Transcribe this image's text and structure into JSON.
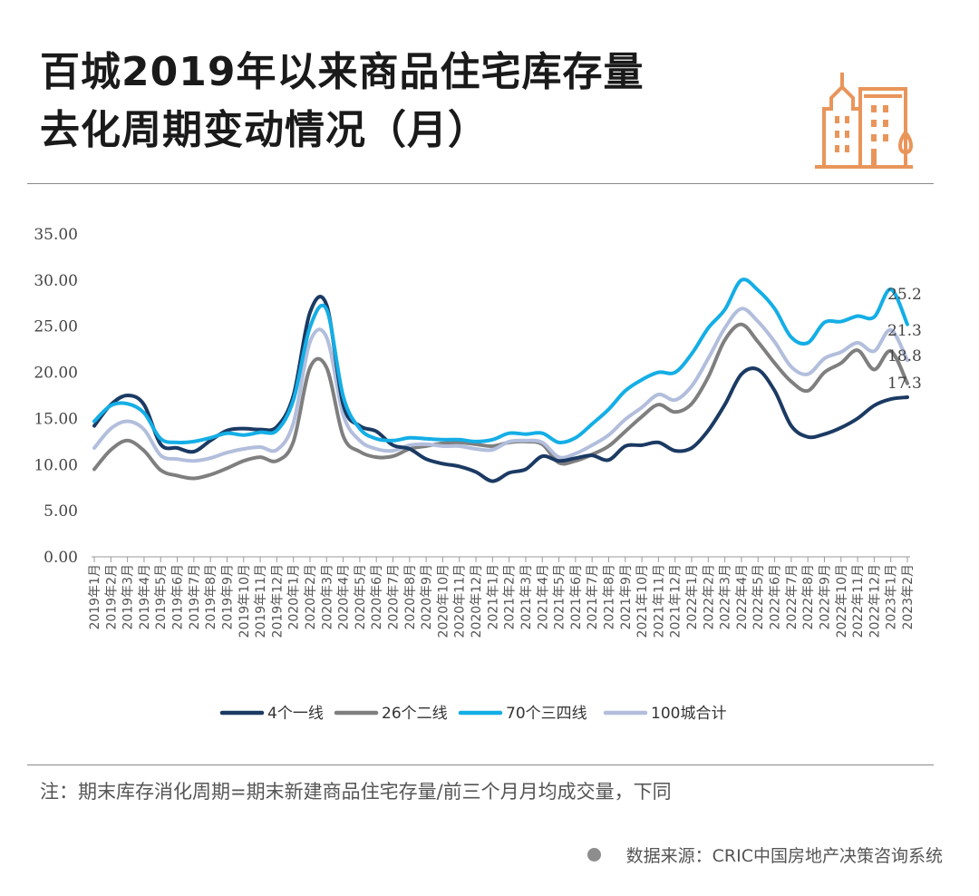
{
  "header": {
    "title_line1": "百城2019年以来商品住宅库存量",
    "title_line2": "去化周期变动情况（月）",
    "logo_icon": "building-icon",
    "accent_color": "#e9955a"
  },
  "footer": {
    "note": "注：期末库存消化周期=期末新建商品住宅存量/前三个月月均成交量，下同",
    "source": "数据来源：CRIC中国房地产决策咨询系统"
  },
  "chart_data": {
    "type": "line",
    "ylim": [
      0,
      35
    ],
    "yticks": [
      "0.00",
      "5.00",
      "10.00",
      "15.00",
      "20.00",
      "25.00",
      "30.00",
      "35.00"
    ],
    "categories": [
      "2019年1月",
      "2019年2月",
      "2019年3月",
      "2019年4月",
      "2019年5月",
      "2019年6月",
      "2019年7月",
      "2019年8月",
      "2019年9月",
      "2019年10月",
      "2019年11月",
      "2019年12月",
      "2020年1月",
      "2020年2月",
      "2020年3月",
      "2020年4月",
      "2020年5月",
      "2020年6月",
      "2020年7月",
      "2020年8月",
      "2020年9月",
      "2020年10月",
      "2020年11月",
      "2020年12月",
      "2021年1月",
      "2021年2月",
      "2021年3月",
      "2021年4月",
      "2021年5月",
      "2021年6月",
      "2021年7月",
      "2021年8月",
      "2021年9月",
      "2021年10月",
      "2021年11月",
      "2021年12月",
      "2022年1月",
      "2022年2月",
      "2022年3月",
      "2022年4月",
      "2022年5月",
      "2022年6月",
      "2022年7月",
      "2022年8月",
      "2022年9月",
      "2022年10月",
      "2022年11月",
      "2022年12月",
      "2023年1月",
      "2023年2月"
    ],
    "series": [
      {
        "name": "4个一线",
        "color": "#1b3a63",
        "values": [
          14.2,
          16.5,
          17.5,
          16.5,
          12.2,
          11.8,
          11.4,
          12.6,
          13.7,
          13.9,
          13.8,
          14.1,
          17.5,
          26.5,
          27.3,
          16.5,
          14.2,
          13.6,
          12.1,
          11.7,
          10.6,
          10.1,
          9.8,
          9.2,
          8.2,
          9.1,
          9.5,
          10.9,
          10.4,
          10.7,
          11.0,
          10.5,
          12.0,
          12.1,
          12.4,
          11.5,
          11.8,
          13.7,
          16.5,
          19.8,
          20.3,
          18.0,
          14.2,
          13.0,
          13.3,
          14.0,
          15.0,
          16.4,
          17.1,
          17.3
        ]
      },
      {
        "name": "26个二线",
        "color": "#7f7f7f",
        "values": [
          9.5,
          11.6,
          12.6,
          11.5,
          9.4,
          8.8,
          8.5,
          8.9,
          9.6,
          10.4,
          10.8,
          10.4,
          12.5,
          20.5,
          20.5,
          13.1,
          11.4,
          10.8,
          10.9,
          11.7,
          12.0,
          12.3,
          12.4,
          12.2,
          12.0,
          12.4,
          12.5,
          12.2,
          10.2,
          10.4,
          11.1,
          12.0,
          13.6,
          15.2,
          16.5,
          15.7,
          16.6,
          19.5,
          23.5,
          25.2,
          23.3,
          21.0,
          19.0,
          18.0,
          20.0,
          21.0,
          22.4,
          20.3,
          22.3,
          18.8
        ]
      },
      {
        "name": "70个三四线",
        "color": "#14aee6",
        "values": [
          14.7,
          16.4,
          16.6,
          15.6,
          12.8,
          12.4,
          12.5,
          12.9,
          13.4,
          13.2,
          13.5,
          13.7,
          17.0,
          24.9,
          26.8,
          17.4,
          13.9,
          12.8,
          12.6,
          12.9,
          12.8,
          12.7,
          12.7,
          12.5,
          12.7,
          13.4,
          13.3,
          13.4,
          12.4,
          12.9,
          14.4,
          16.0,
          18.0,
          19.2,
          20.0,
          20.0,
          22.0,
          24.8,
          26.8,
          30.0,
          28.9,
          26.9,
          23.8,
          23.2,
          25.4,
          25.5,
          26.1,
          26.0,
          29.0,
          25.2
        ]
      },
      {
        "name": "100城合计",
        "color": "#b2bedc",
        "values": [
          11.8,
          13.9,
          14.7,
          13.8,
          11.0,
          10.6,
          10.4,
          10.7,
          11.3,
          11.7,
          11.9,
          11.6,
          14.5,
          23.3,
          23.8,
          15.4,
          12.6,
          11.7,
          11.5,
          12.1,
          12.2,
          12.0,
          12.0,
          11.7,
          11.6,
          12.5,
          12.6,
          12.4,
          10.8,
          11.2,
          12.1,
          13.2,
          14.9,
          16.2,
          17.6,
          17.0,
          18.5,
          21.5,
          24.8,
          26.9,
          25.5,
          23.3,
          20.6,
          19.8,
          21.5,
          22.2,
          23.2,
          22.3,
          24.6,
          21.3
        ]
      }
    ],
    "end_labels": [
      "25.2",
      "21.3",
      "18.8",
      "17.3"
    ],
    "legend_position": "bottom",
    "grid": false
  }
}
